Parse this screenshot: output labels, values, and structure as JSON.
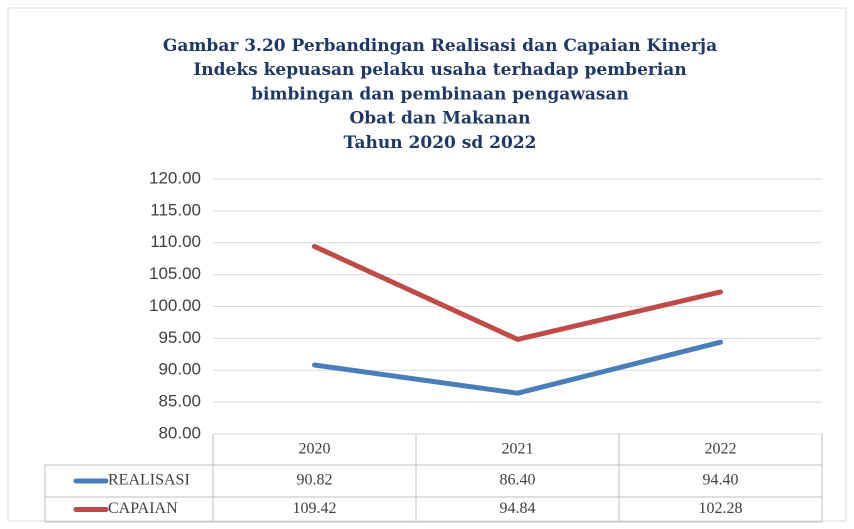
{
  "chart_data": {
    "type": "line",
    "title": [
      "Gambar 3.20 Perbandingan Realisasi dan Capaian Kinerja",
      "Indeks kepuasan pelaku usaha terhadap pemberian",
      "bimbingan dan pembinaan pengawasan",
      "Obat dan Makanan",
      "Tahun 2020 sd 2022"
    ],
    "categories": [
      "2020",
      "2021",
      "2022"
    ],
    "series": [
      {
        "name": "REALISASI",
        "color": "#4a7ebb",
        "values": [
          90.82,
          86.4,
          94.4
        ],
        "value_labels": [
          "90.82",
          "86.40",
          "94.40"
        ]
      },
      {
        "name": "CAPAIAN",
        "color": "#be4b48",
        "values": [
          109.42,
          94.84,
          102.28
        ],
        "value_labels": [
          "109.42",
          "94.84",
          "102.28"
        ]
      }
    ],
    "ylim": [
      80,
      120
    ],
    "yticks": [
      {
        "value": 80,
        "label": "80.00"
      },
      {
        "value": 85,
        "label": "85.00"
      },
      {
        "value": 90,
        "label": "90.00"
      },
      {
        "value": 95,
        "label": "95.00"
      },
      {
        "value": 100,
        "label": "100.00"
      },
      {
        "value": 105,
        "label": "105.00"
      },
      {
        "value": 110,
        "label": "110.00"
      },
      {
        "value": 115,
        "label": "115.00"
      },
      {
        "value": 120,
        "label": "120.00"
      }
    ],
    "grid": true
  }
}
